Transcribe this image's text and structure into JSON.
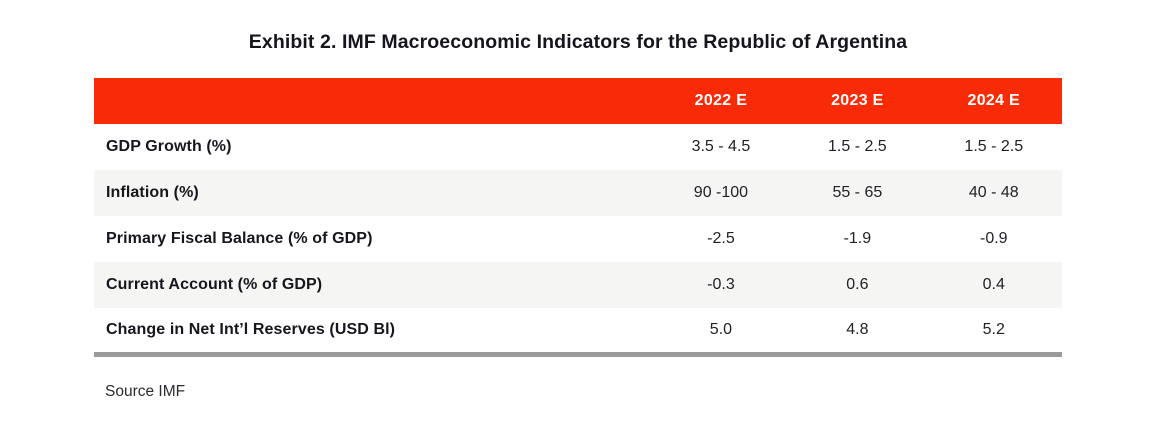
{
  "title": "Exhibit 2. IMF Macroeconomic Indicators for the Republic of Argentina",
  "source": "Source IMF",
  "colors": {
    "header_bg": "#f92b06",
    "header_text": "#ffffff",
    "row_alt_bg": "#f5f5f4",
    "bottom_border": "#9b9b9b",
    "text": "#16161d"
  },
  "chart_data": {
    "type": "table",
    "title": "Exhibit 2. IMF Macroeconomic Indicators for the Republic of Argentina",
    "columns": [
      "",
      "2022 E",
      "2023 E",
      "2024 E"
    ],
    "rows": [
      {
        "label": "GDP Growth (%)",
        "values": [
          "3.5 - 4.5",
          "1.5 - 2.5",
          "1.5 - 2.5"
        ]
      },
      {
        "label": "Inflation (%)",
        "values": [
          "90 -100",
          "55 - 65",
          "40 - 48"
        ]
      },
      {
        "label": "Primary Fiscal Balance (% of GDP)",
        "values": [
          "-2.5",
          "-1.9",
          "-0.9"
        ]
      },
      {
        "label": "Current Account (% of GDP)",
        "values": [
          "-0.3",
          "0.6",
          "0.4"
        ]
      },
      {
        "label": "Change in Net Int’l Reserves (USD Bl)",
        "values": [
          "5.0",
          "4.8",
          "5.2"
        ]
      }
    ],
    "source": "Source IMF",
    "layout": {
      "header_position": "top",
      "zebra_striping": true
    }
  }
}
